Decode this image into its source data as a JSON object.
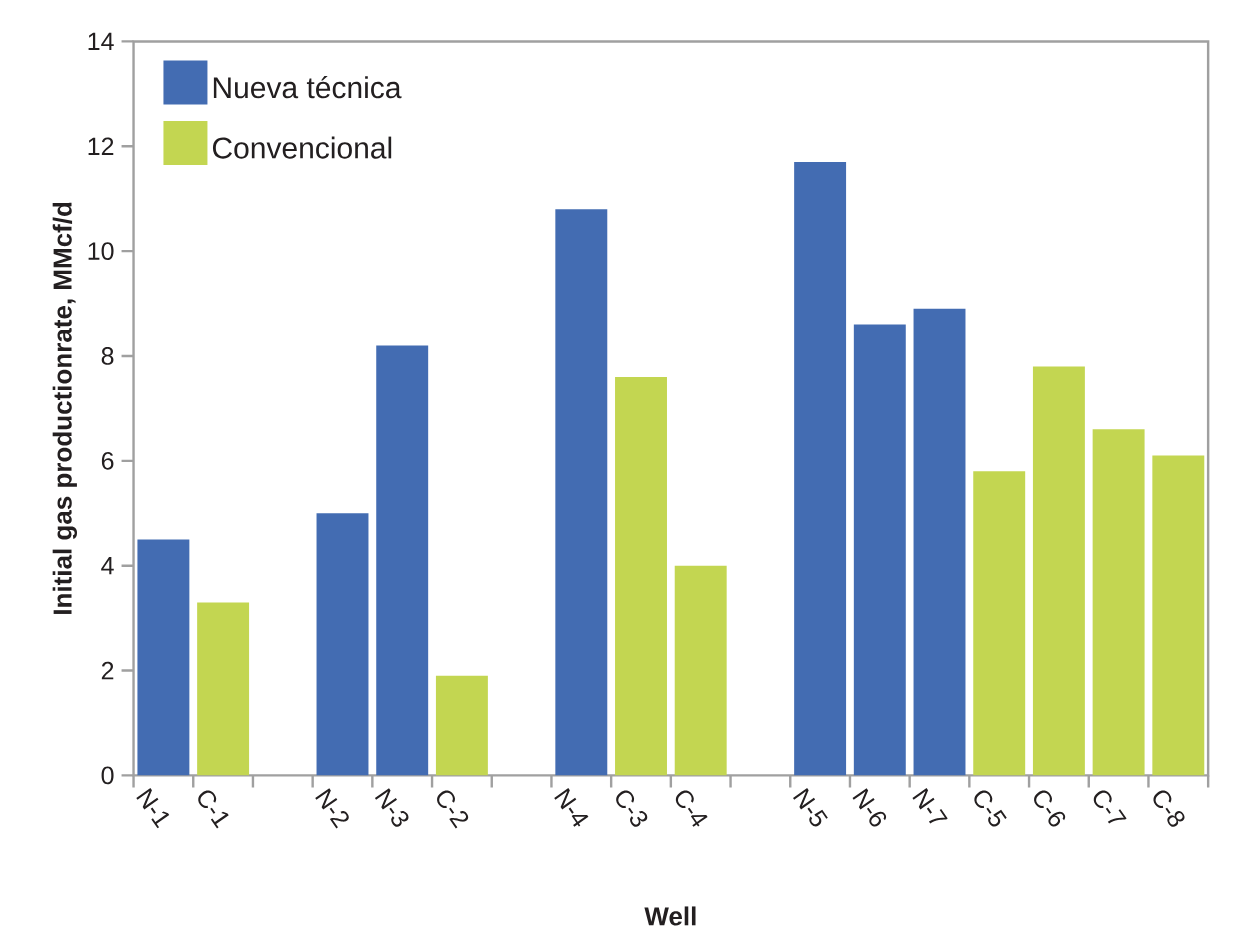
{
  "chart_data": {
    "type": "bar",
    "xlabel": "Well",
    "ylabel": "Initial gas productionrate, MMcf/d",
    "categories": [
      "N-1",
      "C-1",
      null,
      "N-2",
      "N-3",
      "C-2",
      null,
      "N-4",
      "C-3",
      "C-4",
      null,
      "N-5",
      "N-6",
      "N-7",
      "C-5",
      "C-6",
      "C-7",
      "C-8"
    ],
    "series": [
      {
        "name": "Nueva técnica",
        "color": "#436cb2",
        "values": [
          4.5,
          null,
          null,
          5.0,
          8.2,
          null,
          null,
          10.8,
          null,
          null,
          null,
          11.7,
          8.6,
          8.9,
          null,
          null,
          null,
          null
        ]
      },
      {
        "name": "Convencional",
        "color": "#c3d651",
        "values": [
          null,
          3.3,
          null,
          null,
          null,
          1.9,
          null,
          null,
          7.6,
          4.0,
          null,
          null,
          null,
          null,
          5.8,
          7.8,
          6.6,
          6.1
        ]
      }
    ],
    "ylim": [
      0,
      14
    ],
    "yticks": [
      0,
      2,
      4,
      6,
      8,
      10,
      12,
      14
    ],
    "grid": false,
    "legend": "top left"
  }
}
